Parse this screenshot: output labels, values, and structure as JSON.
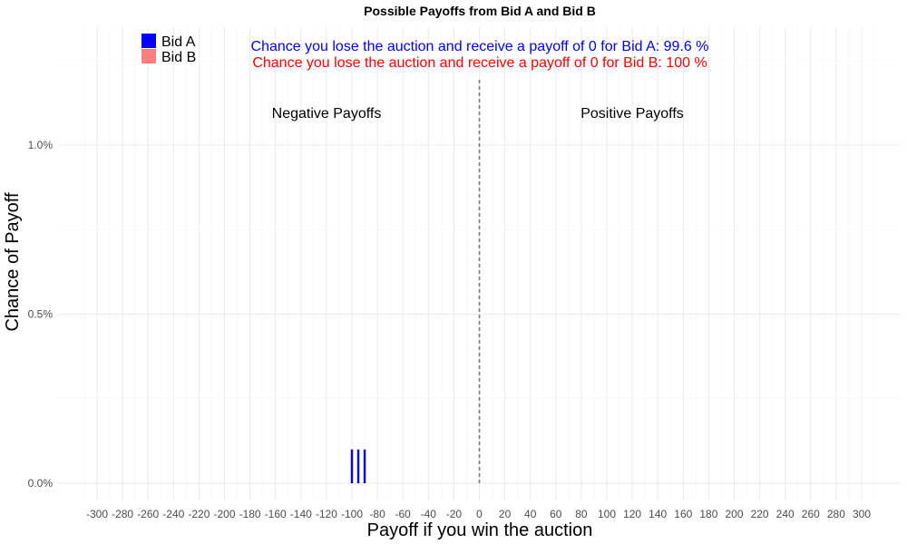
{
  "chart_data": {
    "type": "bar",
    "title": "Possible Payoffs from Bid A and Bid B",
    "xlabel": "Payoff if you win the auction",
    "ylabel": "Chance of Payoff",
    "xlim": [
      -300,
      300
    ],
    "ylim": [
      0,
      1.0
    ],
    "x_ticks": [
      "-300",
      "-280",
      "-260",
      "-240",
      "-220",
      "-200",
      "-180",
      "-160",
      "-140",
      "-120",
      "-100",
      "-80",
      "-60",
      "-40",
      "-20",
      "0",
      "20",
      "40",
      "60",
      "80",
      "100",
      "120",
      "140",
      "160",
      "180",
      "200",
      "220",
      "240",
      "260",
      "280",
      "300"
    ],
    "y_ticks": [
      "0.0%",
      "0.5%",
      "1.0%"
    ],
    "grid": true,
    "legend_position": "top-left",
    "series": [
      {
        "name": "Bid A",
        "color": "#0000ff",
        "x": [
          -100,
          -95,
          -90
        ],
        "y": [
          0.1,
          0.1,
          0.1
        ]
      },
      {
        "name": "Bid B",
        "color": "#ff7f7f",
        "x": [],
        "y": []
      }
    ],
    "reference_line": {
      "x": 0,
      "style": "dashed"
    },
    "annotations": [
      {
        "text": "Chance you lose the auction and receive a payoff of 0 for Bid A:  99.6 %",
        "color": "#0000ff"
      },
      {
        "text": "Chance you lose the auction and receive a payoff of 0 for Bid B:  100 %",
        "color": "#ff0000"
      }
    ],
    "region_labels": [
      "Negative Payoffs",
      "Positive Payoffs"
    ]
  }
}
